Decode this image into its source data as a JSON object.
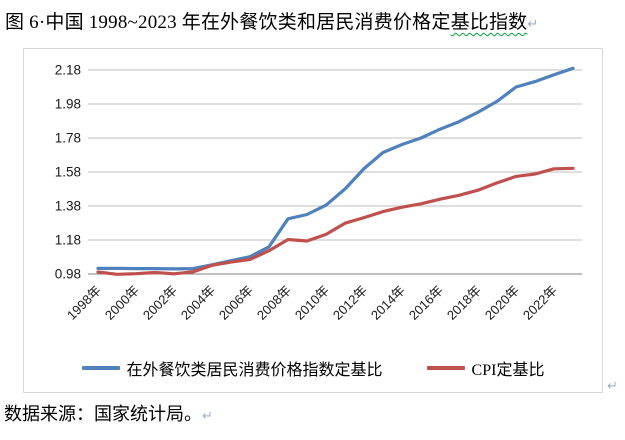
{
  "title": {
    "text_before": "图 6·中国 1998~2023 年在外餐饮类和居民消费价格定",
    "text_flagged": "基比指数",
    "paragraph_mark": "↵"
  },
  "source_note": {
    "text": "数据来源：国家统计局。",
    "paragraph_mark": "↵"
  },
  "chart_paragraph_mark": "↵",
  "colors": {
    "series_dining_out": "#4F81BD",
    "series_cpi": "#C0504D",
    "gridline": "#bfbfbf",
    "axis_line": "#7f7f7f",
    "frame_border": "#d6d6d6"
  },
  "chart_data": {
    "type": "line",
    "title": "",
    "x": [
      1998,
      1999,
      2000,
      2001,
      2002,
      2003,
      2004,
      2005,
      2006,
      2007,
      2008,
      2009,
      2010,
      2011,
      2012,
      2013,
      2014,
      2015,
      2016,
      2017,
      2018,
      2019,
      2020,
      2021,
      2022,
      2023
    ],
    "x_tick_labels": [
      "1998年",
      "2000年",
      "2002年",
      "2004年",
      "2006年",
      "2008年",
      "2010年",
      "2012年",
      "2014年",
      "2016年",
      "2018年",
      "2020年",
      "2022年"
    ],
    "x_tick_step_years": 2,
    "y_ticks": [
      0.98,
      1.18,
      1.38,
      1.58,
      1.78,
      1.98,
      2.18
    ],
    "ylim": [
      0.98,
      2.18
    ],
    "grid": "horizontal",
    "legend_position": "bottom",
    "series": [
      {
        "name": "在外餐饮类居民消费价格指数定基比",
        "color": "#4F81BD",
        "values": [
          1.013,
          1.013,
          1.012,
          1.012,
          1.01,
          1.012,
          1.034,
          1.058,
          1.082,
          1.14,
          1.305,
          1.33,
          1.385,
          1.48,
          1.6,
          1.695,
          1.742,
          1.78,
          1.832,
          1.876,
          1.932,
          1.995,
          2.08,
          2.112,
          2.152,
          2.19
        ]
      },
      {
        "name": "CPI定基比",
        "color": "#C0504D",
        "values": [
          0.992,
          0.978,
          0.982,
          0.989,
          0.981,
          0.993,
          1.031,
          1.05,
          1.066,
          1.117,
          1.183,
          1.174,
          1.213,
          1.279,
          1.312,
          1.347,
          1.373,
          1.393,
          1.42,
          1.443,
          1.473,
          1.516,
          1.554,
          1.568,
          1.599,
          1.602
        ]
      }
    ]
  }
}
